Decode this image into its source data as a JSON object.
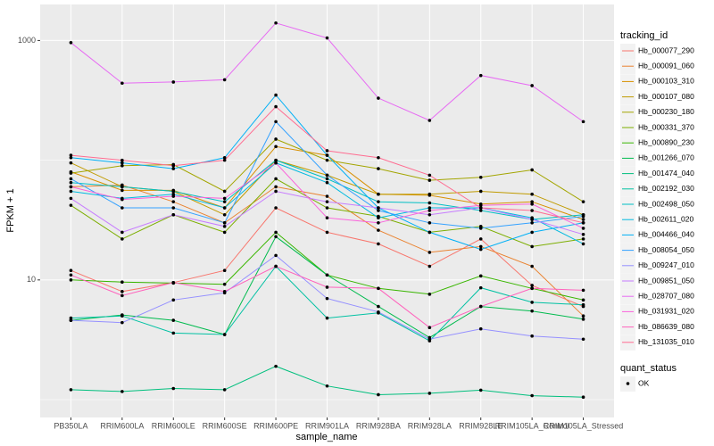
{
  "chart_data": {
    "type": "line",
    "x_label": "sample_name",
    "y_label": "FPKM + 1",
    "legend_title": "tracking_id",
    "categories": [
      "PB350LA",
      "RRIM600LA",
      "RRIM600LE",
      "RRIM600SE",
      "RRIM600PE",
      "RRIM901LA",
      "RRIM928BA",
      "RRIM928LA",
      "RRIM928LE",
      "RRIM105LA_Control",
      "RRIM105LA_Stressed"
    ],
    "log_y": true,
    "ylim": [
      0.71,
      2000
    ],
    "yticks": [
      10,
      1000
    ],
    "y_minor_ticks": [
      1,
      100
    ],
    "grid": true,
    "legend_position": "right",
    "point_color": "#000000",
    "shape_legend": {
      "title": "quant_status",
      "items": [
        "OK"
      ]
    },
    "series": [
      {
        "name": "Hb_000077_290",
        "color": "#F8766D",
        "values": [
          12,
          8,
          9.5,
          12,
          40,
          25,
          20,
          13,
          22,
          9,
          6
        ]
      },
      {
        "name": "Hb_000091_060",
        "color": "#EA8331",
        "values": [
          60,
          62,
          45,
          30,
          60,
          50,
          26,
          17,
          19,
          13,
          5
        ]
      },
      {
        "name": "Hb_000103_310",
        "color": "#D89000",
        "values": [
          80,
          56,
          56,
          40,
          130,
          110,
          52,
          51,
          43,
          45,
          32
        ]
      },
      {
        "name": "Hb_000107_080",
        "color": "#C09B00",
        "values": [
          95,
          60,
          55,
          35,
          100,
          75,
          52,
          52,
          55,
          52,
          35
        ]
      },
      {
        "name": "Hb_000230_180",
        "color": "#A3A500",
        "values": [
          78,
          90,
          92,
          55,
          150,
          100,
          85,
          68,
          72,
          83,
          45
        ]
      },
      {
        "name": "Hb_000331_370",
        "color": "#7CAE00",
        "values": [
          42,
          22,
          35,
          25,
          70,
          40,
          34,
          25,
          28,
          19,
          22
        ]
      },
      {
        "name": "Hb_000890_230",
        "color": "#39B600",
        "values": [
          10,
          9.6,
          9.4,
          9.2,
          25,
          11,
          8.5,
          7.6,
          10.8,
          8.5,
          6.8
        ]
      },
      {
        "name": "Hb_001266_070",
        "color": "#00BB4E",
        "values": [
          4.6,
          5.1,
          4.6,
          3.5,
          23,
          11,
          6,
          3.3,
          6,
          5.5,
          4.7
        ]
      },
      {
        "name": "Hb_001474_040",
        "color": "#00BF7D",
        "values": [
          1.21,
          1.17,
          1.24,
          1.21,
          1.9,
          1.3,
          1.1,
          1.13,
          1.2,
          1.08,
          1.05
        ]
      },
      {
        "name": "Hb_002192_030",
        "color": "#00C1A3",
        "values": [
          4.8,
          5,
          3.6,
          3.5,
          13,
          4.8,
          5.3,
          3.1,
          8.6,
          6.5,
          6.2
        ]
      },
      {
        "name": "Hb_002498_050",
        "color": "#00BFC4",
        "values": [
          65,
          60,
          55,
          45,
          100,
          70,
          45,
          44,
          38,
          32,
          35
        ]
      },
      {
        "name": "Hb_002611_020",
        "color": "#00BAE0",
        "values": [
          55,
          48,
          52,
          40,
          95,
          65,
          33,
          40,
          40,
          33,
          20
        ]
      },
      {
        "name": "Hb_004466_040",
        "color": "#00B0F6",
        "values": [
          105,
          95,
          85,
          105,
          350,
          110,
          40,
          25,
          18,
          25,
          30
        ]
      },
      {
        "name": "Hb_008054_050",
        "color": "#35A2FF",
        "values": [
          70,
          40,
          40,
          30,
          210,
          75,
          38,
          30,
          27,
          30,
          34
        ]
      },
      {
        "name": "Hb_009247_010",
        "color": "#9590FF",
        "values": [
          4.6,
          4.4,
          6.8,
          7.8,
          16,
          7,
          5.4,
          3.2,
          3.9,
          3.4,
          3.2
        ]
      },
      {
        "name": "Hb_009851_050",
        "color": "#C77CFF",
        "values": [
          48,
          25,
          35,
          28,
          55,
          45,
          40,
          35,
          40,
          32,
          24
        ]
      },
      {
        "name": "Hb_028707_080",
        "color": "#E76BF3",
        "values": [
          960,
          440,
          450,
          470,
          1400,
          1050,
          330,
          215,
          510,
          420,
          210
        ]
      },
      {
        "name": "Hb_031931_020",
        "color": "#FA62DB",
        "values": [
          60,
          47,
          50,
          48,
          95,
          33,
          30,
          38,
          42,
          43,
          27
        ]
      },
      {
        "name": "Hb_086639_080",
        "color": "#FF62BC",
        "values": [
          11,
          7.4,
          9.5,
          8,
          13,
          8.7,
          8.5,
          4,
          6,
          8.5,
          8.2
        ]
      },
      {
        "name": "Hb_131035_010",
        "color": "#FF6C91",
        "values": [
          110,
          100,
          90,
          100,
          280,
          120,
          105,
          75,
          40,
          38,
          30
        ]
      }
    ]
  }
}
